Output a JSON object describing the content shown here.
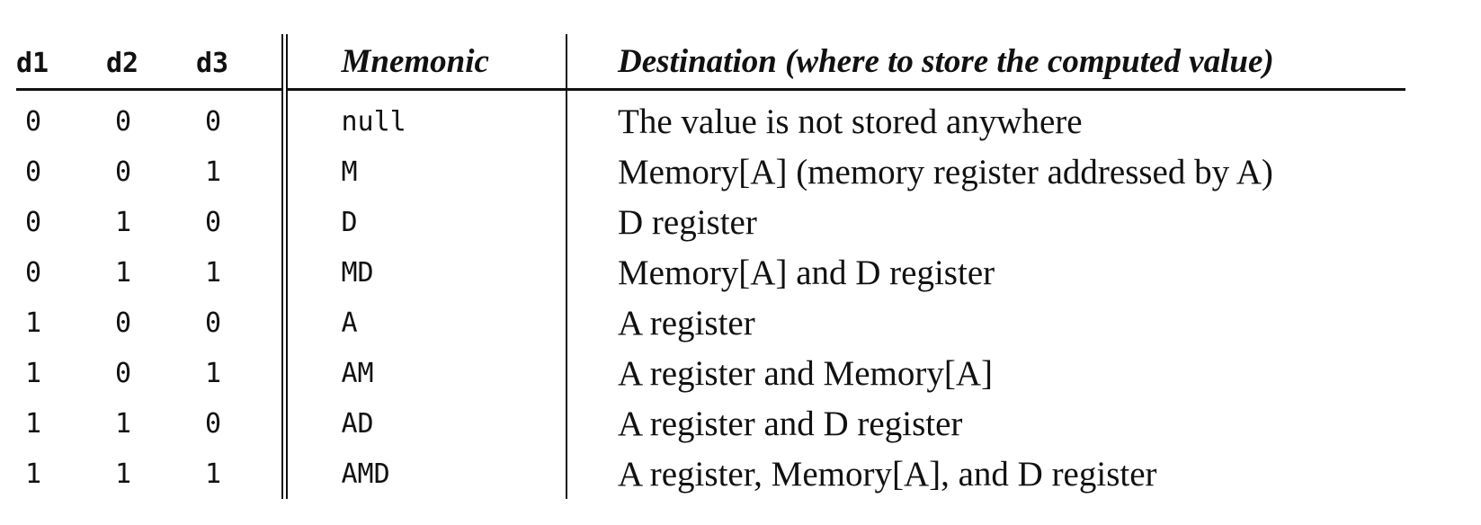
{
  "table": {
    "headers": {
      "d1": "d1",
      "d2": "d2",
      "d3": "d3",
      "mnemonic": "Mnemonic",
      "destination": "Destination (where to store the computed value)"
    },
    "rows": [
      {
        "d1": "0",
        "d2": "0",
        "d3": "0",
        "mnemonic": "null",
        "destination": "The value is not stored anywhere"
      },
      {
        "d1": "0",
        "d2": "0",
        "d3": "1",
        "mnemonic": "M",
        "destination": "Memory[A] (memory register addressed by A)"
      },
      {
        "d1": "0",
        "d2": "1",
        "d3": "0",
        "mnemonic": "D",
        "destination": "D register"
      },
      {
        "d1": "0",
        "d2": "1",
        "d3": "1",
        "mnemonic": "MD",
        "destination": "Memory[A] and D register"
      },
      {
        "d1": "1",
        "d2": "0",
        "d3": "0",
        "mnemonic": "A",
        "destination": "A register"
      },
      {
        "d1": "1",
        "d2": "0",
        "d3": "1",
        "mnemonic": "AM",
        "destination": "A register and Memory[A]"
      },
      {
        "d1": "1",
        "d2": "1",
        "d3": "0",
        "mnemonic": "AD",
        "destination": "A register and D register"
      },
      {
        "d1": "1",
        "d2": "1",
        "d3": "1",
        "mnemonic": "AMD",
        "destination": "A register, Memory[A], and D register"
      }
    ]
  }
}
